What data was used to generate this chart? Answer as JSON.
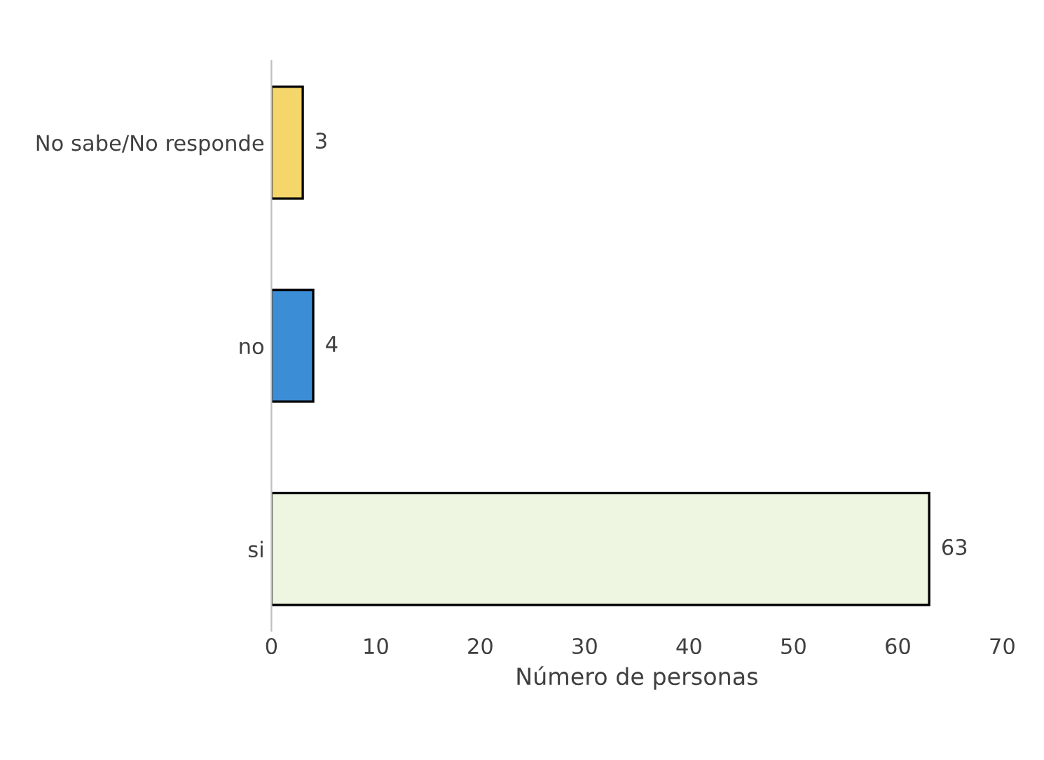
{
  "chart_data": {
    "type": "bar",
    "orientation": "horizontal",
    "categories": [
      "No sabe/No responde",
      "no",
      "si"
    ],
    "values": [
      3,
      4,
      63
    ],
    "colors": [
      "#f5d66a",
      "#3b8ed6",
      "#eef6e2"
    ],
    "xlim": [
      0,
      70
    ],
    "xticks": [
      0,
      10,
      20,
      30,
      40,
      50,
      60,
      70
    ],
    "xlabel": "Número de personas",
    "data_labels": true,
    "grid": false,
    "legend": false
  }
}
